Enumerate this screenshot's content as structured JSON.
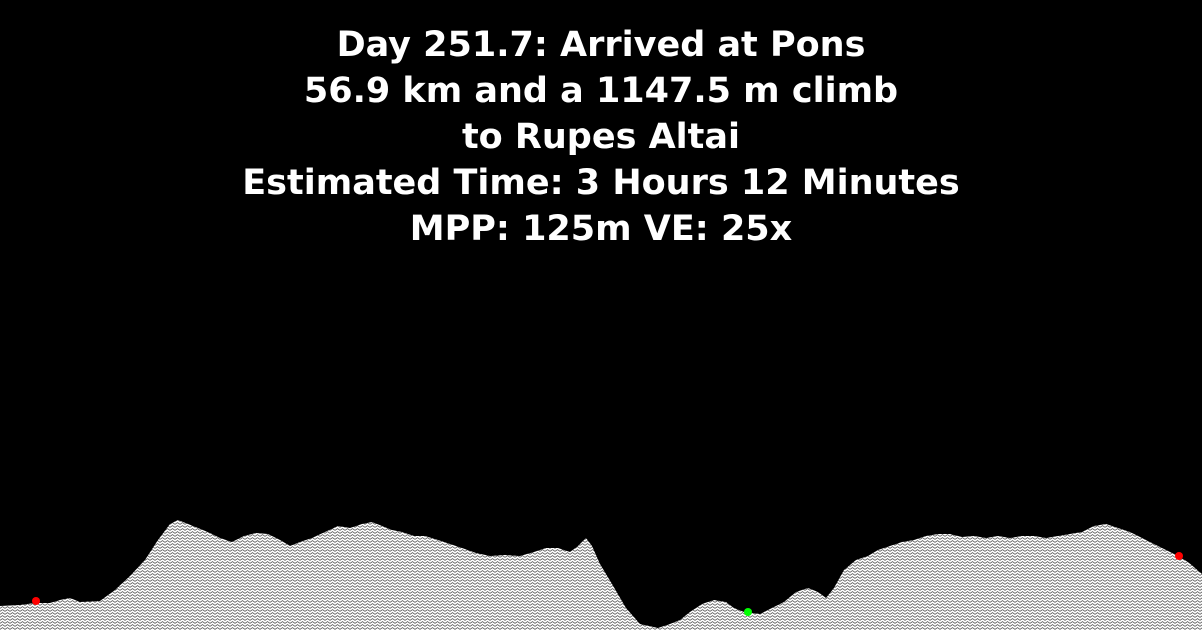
{
  "status": {
    "line1": "Day 251.7: Arrived at Pons",
    "line2": "56.9 km and a 1147.5 m climb",
    "line3": "to Rupes Altai",
    "line4": "Estimated Time: 3 Hours 12 Minutes",
    "line5": "MPP: 125m VE: 25x"
  },
  "colors": {
    "background": "#000000",
    "text": "#ffffff",
    "terrain_fill": "#ffffff",
    "terrain_hatch": "#555555",
    "waypoint_marker": "#ff0000",
    "current_position_marker": "#00ff00"
  },
  "markers": {
    "start": "red waypoint",
    "current": "green position",
    "end": "red waypoint"
  }
}
